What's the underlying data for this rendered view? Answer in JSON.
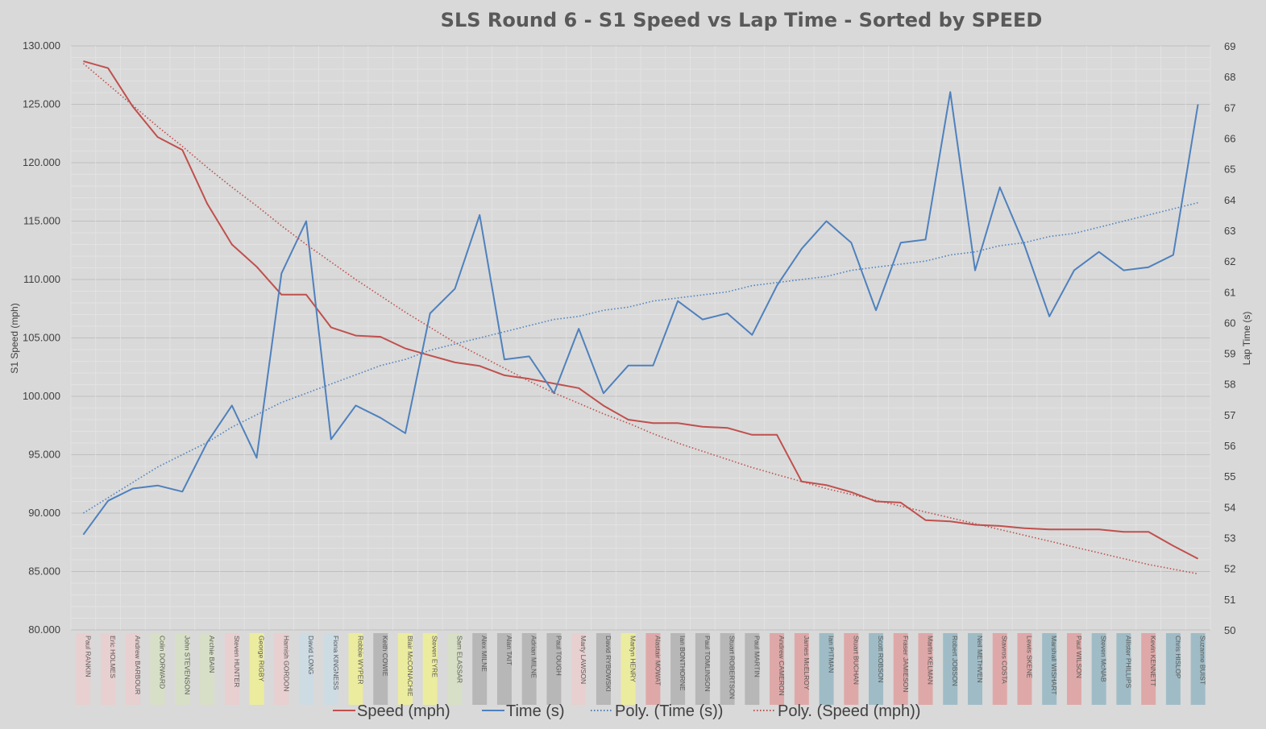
{
  "chart_data": {
    "type": "line",
    "title": "SLS Round 6 - S1 Speed vs Lap Time - Sorted by SPEED",
    "ylabel": "S1 Speed (mph)",
    "y2label": "Lap Time (s)",
    "ylim": [
      80,
      130
    ],
    "y2lim": [
      50,
      69
    ],
    "y_ticks": [
      "80.000",
      "85.000",
      "90.000",
      "95.000",
      "100.000",
      "105.000",
      "110.000",
      "115.000",
      "120.000",
      "125.000",
      "130.000"
    ],
    "y2_ticks": [
      "50",
      "51",
      "52",
      "53",
      "54",
      "55",
      "56",
      "57",
      "58",
      "59",
      "60",
      "61",
      "62",
      "63",
      "64",
      "65",
      "66",
      "67",
      "68",
      "69"
    ],
    "grid": true,
    "legend_position": "bottom",
    "categories": [
      "Paul RANKIN",
      "Eric HOLMES",
      "Andrew BARBOUR",
      "Colin DORWARD",
      "John STEVENSON",
      "Archie BAIN",
      "Steven HUNTER",
      "George RIGBY",
      "Hamish GORDON",
      "David LONG",
      "Fiona KINGNESS",
      "Robbie WYPER",
      "Keith COWIE",
      "Blair McCONACHIE",
      "Steven EYRE",
      "Sam ELASSAR",
      "Alex MILNE",
      "Alan TAIT",
      "Adrian MILNE",
      "Paul TOUGH",
      "Marty LAWSON",
      "David RYBOWSKI",
      "Martyn HENRY",
      "Alastair MOWAT",
      "Ian BONTHORNE",
      "Paul TOMLINSON",
      "Stuart ROBERTSON",
      "Paul MARTIN",
      "Andrew CAMERON",
      "James McELROY",
      "Ian PITMAN",
      "Stuart BUCHAN",
      "Scott ROBSON",
      "Fraser JAMIESON",
      "Martin KELMAN",
      "Robert JOBSON",
      "Neil METHVEN",
      "Stavros COSTA",
      "Lewis SKENE",
      "Marshall WISHART",
      "Paul WILSON",
      "Steven McNAB",
      "Allister PHILLIPS",
      "Kevin KENNETT",
      "Chris HISLOP",
      "Suzanne BUIST"
    ],
    "category_colors": [
      "#e8cfd0",
      "#e8cfd0",
      "#e8cfd0",
      "#d7dfc6",
      "#d7dfc6",
      "#d7dfc6",
      "#e8cfd0",
      "#ecec9f",
      "#e8cfd0",
      "#cddbe3",
      "#cddbe3",
      "#ecec9f",
      "#b7b7b7",
      "#ecec9f",
      "#ecec9f",
      "#d7dfc6",
      "#b7b7b7",
      "#b7b7b7",
      "#b7b7b7",
      "#b7b7b7",
      "#e8cfd0",
      "#b7b7b7",
      "#ecec9f",
      "#dfa8a8",
      "#b7b7b7",
      "#b7b7b7",
      "#b7b7b7",
      "#b7b7b7",
      "#dfa8a8",
      "#dfa8a8",
      "#9fbcc6",
      "#dfa8a8",
      "#9fbcc6",
      "#dfa8a8",
      "#dfa8a8",
      "#9fbcc6",
      "#9fbcc6",
      "#dfa8a8",
      "#dfa8a8",
      "#9fbcc6",
      "#dfa8a8",
      "#9fbcc6",
      "#9fbcc6",
      "#dfa8a8",
      "#9fbcc6",
      "#9fbcc6"
    ],
    "series": [
      {
        "name": "Speed (mph)",
        "axis": "left",
        "style": "solid",
        "color": "#c0504d",
        "values": [
          128.7,
          128.1,
          124.8,
          122.2,
          121.1,
          116.5,
          113.0,
          111.1,
          108.7,
          108.7,
          105.9,
          105.2,
          105.1,
          104.1,
          103.5,
          102.9,
          102.6,
          101.8,
          101.5,
          101.1,
          100.7,
          99.2,
          98.0,
          97.7,
          97.7,
          97.4,
          97.3,
          96.7,
          96.7,
          92.7,
          92.4,
          91.8,
          91.0,
          90.9,
          89.4,
          89.3,
          89.0,
          88.9,
          88.7,
          88.6,
          88.6,
          88.6,
          88.4,
          88.4,
          87.2,
          86.1
        ]
      },
      {
        "name": "Time (s)",
        "axis": "right",
        "style": "solid",
        "color": "#4f81bd",
        "values": [
          53.1,
          54.2,
          54.6,
          54.7,
          54.5,
          56.1,
          57.3,
          55.6,
          61.6,
          63.3,
          56.2,
          57.3,
          56.9,
          56.4,
          60.3,
          61.1,
          63.5,
          58.8,
          58.9,
          57.7,
          59.8,
          57.7,
          58.6,
          58.6,
          60.7,
          60.1,
          60.3,
          59.6,
          61.2,
          62.4,
          63.3,
          62.6,
          60.4,
          62.6,
          62.7,
          67.5,
          61.7,
          64.4,
          62.5,
          60.2,
          61.7,
          62.3,
          61.7,
          61.8,
          62.2,
          67.1
        ]
      },
      {
        "name": "Poly. (Time (s))",
        "axis": "right",
        "style": "dotted",
        "color": "#4f81bd",
        "values": [
          53.8,
          54.3,
          54.8,
          55.3,
          55.7,
          56.1,
          56.6,
          57.0,
          57.4,
          57.7,
          58.0,
          58.3,
          58.6,
          58.8,
          59.1,
          59.3,
          59.5,
          59.7,
          59.9,
          60.1,
          60.2,
          60.4,
          60.5,
          60.7,
          60.8,
          60.9,
          61.0,
          61.2,
          61.3,
          61.4,
          61.5,
          61.7,
          61.8,
          61.9,
          62.0,
          62.2,
          62.3,
          62.5,
          62.6,
          62.8,
          62.9,
          63.1,
          63.3,
          63.5,
          63.7,
          63.9
        ]
      },
      {
        "name": "Poly. (Speed (mph))",
        "axis": "left",
        "style": "dotted",
        "color": "#c0504d",
        "values": [
          128.5,
          126.7,
          124.9,
          123.1,
          121.4,
          119.6,
          117.9,
          116.3,
          114.6,
          113.0,
          111.5,
          110.0,
          108.6,
          107.2,
          105.9,
          104.6,
          103.5,
          102.4,
          101.3,
          100.3,
          99.4,
          98.5,
          97.7,
          96.8,
          96.0,
          95.3,
          94.6,
          93.9,
          93.3,
          92.7,
          92.1,
          91.6,
          91.1,
          90.6,
          90.1,
          89.6,
          89.1,
          88.6,
          88.1,
          87.6,
          87.1,
          86.6,
          86.1,
          85.6,
          85.2,
          84.8
        ]
      }
    ]
  }
}
